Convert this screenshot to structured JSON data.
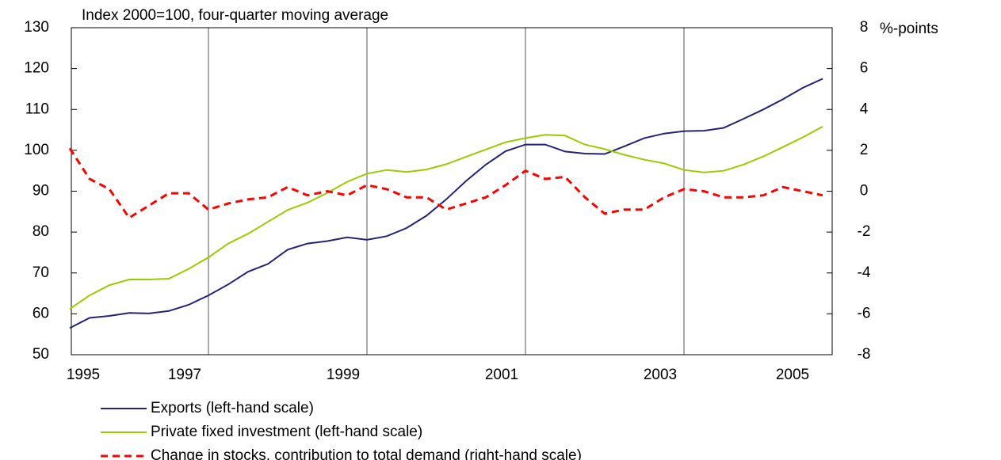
{
  "chart_data": {
    "type": "line",
    "title": "Index 2000=100, four-quarter moving average",
    "y2_label": "%-points",
    "x": [
      1995.25,
      1995.5,
      1995.75,
      1996,
      1996.25,
      1996.5,
      1996.75,
      1997,
      1997.25,
      1997.5,
      1997.75,
      1998,
      1998.25,
      1998.5,
      1998.75,
      1999,
      1999.25,
      1999.5,
      1999.75,
      2000,
      2000.25,
      2000.5,
      2000.75,
      2001,
      2001.25,
      2001.5,
      2001.75,
      2002,
      2002.25,
      2002.5,
      2002.75,
      2003,
      2003.25,
      2003.5,
      2003.75,
      2004,
      2004.25,
      2004.5,
      2004.75
    ],
    "series": [
      {
        "name": "Exports (left-hand scale)",
        "color": "#22227a",
        "dash": "solid",
        "values": [
          56.5,
          59,
          59.5,
          60.2,
          60.1,
          60.7,
          62.2,
          64.5,
          67.2,
          70.3,
          72.2,
          75.7,
          77.2,
          77.8,
          78.7,
          78.1,
          79.0,
          81.0,
          84.0,
          88.0,
          92.5,
          96.5,
          99.8,
          101.4,
          101.4,
          99.7,
          99.2,
          99.1,
          101.0,
          103.0,
          104.1,
          104.7,
          104.8,
          105.5,
          107.7,
          110,
          112.5,
          115.3,
          117.5
        ]
      },
      {
        "name": "Private fixed investment (left-hand scale)",
        "color": "#99cc00",
        "dash": "solid",
        "values": [
          61.2,
          64.5,
          67,
          68.4,
          68.4,
          68.6,
          71,
          73.8,
          77.2,
          79.6,
          82.5,
          85.4,
          87.2,
          89.6,
          92.3,
          94.3,
          95.2,
          94.7,
          95.3,
          96.6,
          98.4,
          100.2,
          102.0,
          103.0,
          103.8,
          103.6,
          101.4,
          100.3,
          98.9,
          97.7,
          96.8,
          95.2,
          94.6,
          95.0,
          96.5,
          98.5,
          100.8,
          103.2,
          105.8
        ]
      },
      {
        "name": "Change in stocks, contribution to total demand (right-hand scale)",
        "color": "#ff0000",
        "dash": "dashed",
        "axis": "y2",
        "values": [
          2.1,
          0.6,
          0.1,
          -1.3,
          -0.7,
          -0.1,
          -0.1,
          -0.9,
          -0.6,
          -0.4,
          -0.3,
          0.2,
          -0.2,
          0.0,
          -0.2,
          0.3,
          0.1,
          -0.3,
          -0.3,
          -0.9,
          -0.6,
          -0.3,
          0.3,
          1.0,
          0.6,
          0.7,
          -0.3,
          -1.1,
          -0.9,
          -0.9,
          -0.3,
          0.1,
          0.0,
          -0.3,
          -0.3,
          -0.2,
          0.2,
          0.0,
          -0.2
        ]
      }
    ],
    "xlim": [
      1995.27,
      2004.87
    ],
    "xticks": [
      1995,
      1997,
      1999,
      2001,
      2003,
      2005
    ],
    "ylim": [
      50,
      130
    ],
    "yticks": [
      50,
      60,
      70,
      80,
      90,
      100,
      110,
      120,
      130
    ],
    "y2lim": [
      -8,
      8
    ],
    "y2ticks": [
      -8,
      -6,
      -4,
      -2,
      0,
      2,
      4,
      6,
      8
    ],
    "grid": "x"
  }
}
